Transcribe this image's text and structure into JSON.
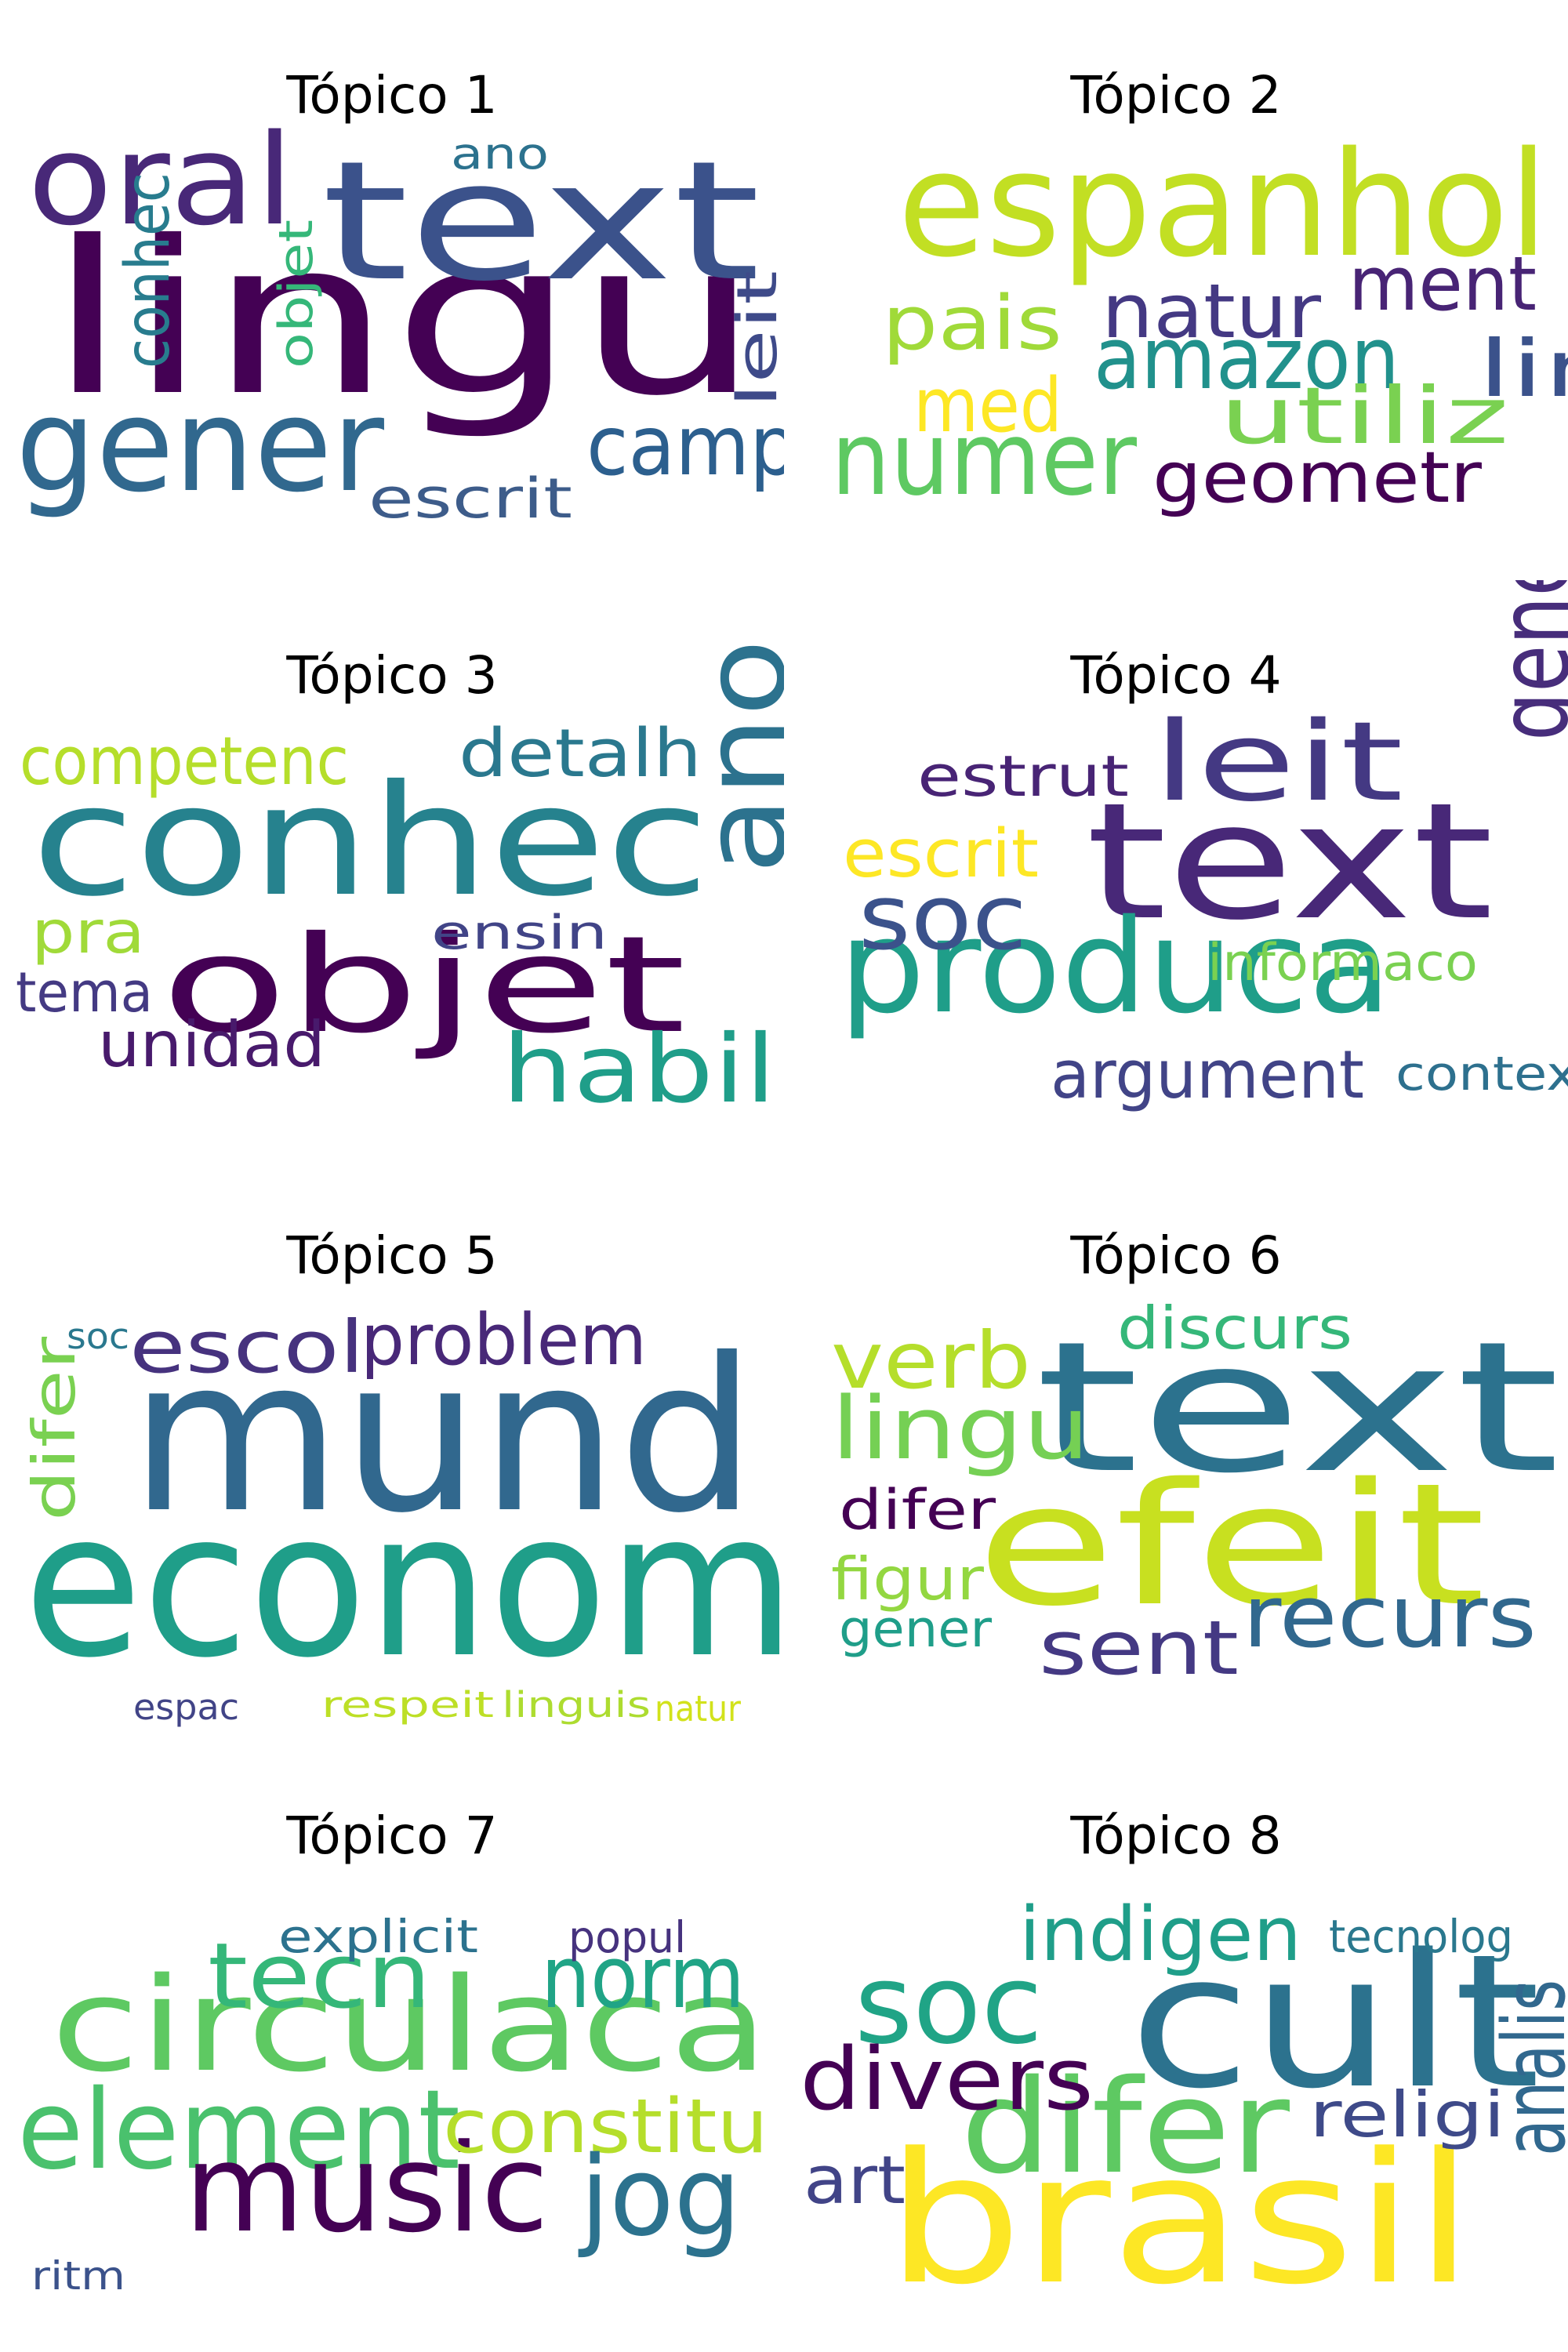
{
  "panels": [
    {
      "title": "Tópico 1",
      "words": [
        {
          "text": "lingu",
          "color": "#440154"
        },
        {
          "text": "text",
          "color": "#3b528b"
        },
        {
          "text": "oral",
          "color": "#482878"
        },
        {
          "text": "gener",
          "color": "#31688e"
        },
        {
          "text": "camp",
          "color": "#2c5f8e"
        },
        {
          "text": "escrit",
          "color": "#3d5c8a"
        },
        {
          "text": "ano",
          "color": "#2c728e"
        },
        {
          "text": "conhec",
          "color": "#287c8e"
        },
        {
          "text": "objet",
          "color": "#35b779"
        },
        {
          "text": "leit",
          "color": "#3e4a89"
        }
      ]
    },
    {
      "title": "Tópico 2",
      "words": [
        {
          "text": "espanhol",
          "color": "#c2df23"
        },
        {
          "text": "numer",
          "color": "#5ec962"
        },
        {
          "text": "natur",
          "color": "#443983"
        },
        {
          "text": "ment",
          "color": "#482475"
        },
        {
          "text": "amazon",
          "color": "#21918c"
        },
        {
          "text": "pais",
          "color": "#a0da39"
        },
        {
          "text": "lin",
          "color": "#3b528b"
        },
        {
          "text": "utiliz",
          "color": "#7ad151"
        },
        {
          "text": "med",
          "color": "#fde725"
        },
        {
          "text": "geometr",
          "color": "#440154"
        }
      ]
    },
    {
      "title": "Tópico 3",
      "words": [
        {
          "text": "conhec",
          "color": "#26828e"
        },
        {
          "text": "objet",
          "color": "#440154"
        },
        {
          "text": "ano",
          "color": "#2c728e"
        },
        {
          "text": "habil",
          "color": "#1f9e89"
        },
        {
          "text": "competenc",
          "color": "#b5de2b"
        },
        {
          "text": "detalh",
          "color": "#2a788e"
        },
        {
          "text": "pra",
          "color": "#a0da39"
        },
        {
          "text": "ensin",
          "color": "#414487"
        },
        {
          "text": "tema",
          "color": "#443a83"
        },
        {
          "text": "unidad",
          "color": "#481a6c"
        }
      ]
    },
    {
      "title": "Tópico 4",
      "words": [
        {
          "text": "text",
          "color": "#482878"
        },
        {
          "text": "produca",
          "color": "#1f9e89"
        },
        {
          "text": "leit",
          "color": "#443983"
        },
        {
          "text": "gener",
          "color": "#472d7b"
        },
        {
          "text": "estrut",
          "color": "#482475"
        },
        {
          "text": "escrit",
          "color": "#fde725"
        },
        {
          "text": "soc",
          "color": "#3b528b"
        },
        {
          "text": "informaco",
          "color": "#7ad151"
        },
        {
          "text": "argument",
          "color": "#414487"
        },
        {
          "text": "context",
          "color": "#2d708e"
        }
      ]
    },
    {
      "title": "Tópico 5",
      "words": [
        {
          "text": "mund",
          "color": "#31688e"
        },
        {
          "text": "econom",
          "color": "#1f9e89"
        },
        {
          "text": "escol",
          "color": "#46327e"
        },
        {
          "text": "problem",
          "color": "#482878"
        },
        {
          "text": "difer",
          "color": "#7ad151"
        },
        {
          "text": "soc",
          "color": "#2a788e"
        },
        {
          "text": "espac",
          "color": "#414487"
        },
        {
          "text": "respeit",
          "color": "#bddf26"
        },
        {
          "text": "linguis",
          "color": "#addc30"
        },
        {
          "text": "natur",
          "color": "#d2e21b"
        }
      ]
    },
    {
      "title": "Tópico 6",
      "words": [
        {
          "text": "text",
          "color": "#2c728e"
        },
        {
          "text": "efeit",
          "color": "#c8e020"
        },
        {
          "text": "verb",
          "color": "#b5de2b"
        },
        {
          "text": "lingu",
          "color": "#75d054"
        },
        {
          "text": "discurs",
          "color": "#35b779"
        },
        {
          "text": "recurs",
          "color": "#31688e"
        },
        {
          "text": "sent",
          "color": "#443983"
        },
        {
          "text": "difer",
          "color": "#440154"
        },
        {
          "text": "figur",
          "color": "#93d741"
        },
        {
          "text": "gener",
          "color": "#1f9e89"
        }
      ]
    },
    {
      "title": "Tópico 7",
      "words": [
        {
          "text": "circulaca",
          "color": "#5ec962"
        },
        {
          "text": "element",
          "color": "#4ac16d"
        },
        {
          "text": "music",
          "color": "#440154"
        },
        {
          "text": "tecn",
          "color": "#35b779"
        },
        {
          "text": "norm",
          "color": "#20a486"
        },
        {
          "text": "constitu",
          "color": "#b5de2b"
        },
        {
          "text": "jog",
          "color": "#2c728e"
        },
        {
          "text": "explicit",
          "color": "#2c728e"
        },
        {
          "text": "popul",
          "color": "#46327e"
        },
        {
          "text": "ritm",
          "color": "#3b528b"
        }
      ]
    },
    {
      "title": "Tópico 8",
      "words": [
        {
          "text": "cult",
          "color": "#2c728e"
        },
        {
          "text": "brasil",
          "color": "#fde725"
        },
        {
          "text": "difer",
          "color": "#5ec962"
        },
        {
          "text": "soc",
          "color": "#20a486"
        },
        {
          "text": "divers",
          "color": "#440154"
        },
        {
          "text": "indigen",
          "color": "#1f9e89"
        },
        {
          "text": "analis",
          "color": "#31688e"
        },
        {
          "text": "religi",
          "color": "#3e4a89"
        },
        {
          "text": "art",
          "color": "#414487"
        },
        {
          "text": "tecnolog",
          "color": "#2a788e"
        }
      ]
    }
  ]
}
